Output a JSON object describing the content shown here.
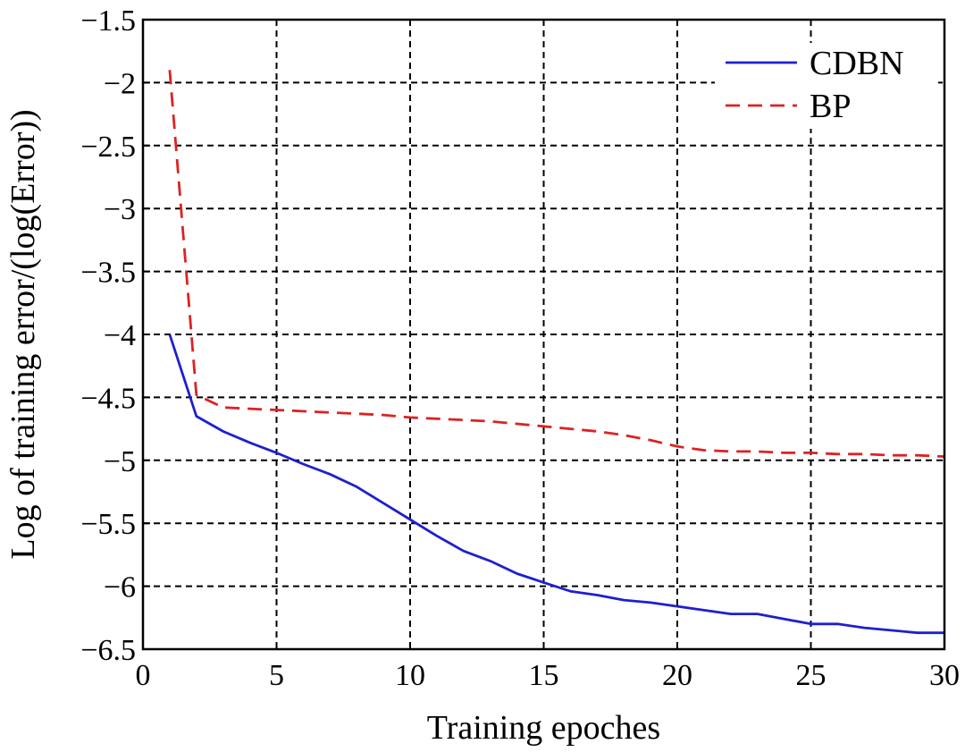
{
  "chart_data": {
    "type": "line",
    "title": "",
    "xlabel": "Training epoches",
    "ylabel": "Log of training error/(log(Error))",
    "xlim": [
      0,
      30
    ],
    "ylim": [
      -6.5,
      -1.5
    ],
    "xticks": [
      0,
      5,
      10,
      15,
      20,
      25,
      30
    ],
    "xtick_labels": [
      "0",
      "5",
      "10",
      "15",
      "20",
      "25",
      "30"
    ],
    "yticks": [
      -1.5,
      -2,
      -2.5,
      -3,
      -3.5,
      -4,
      -4.5,
      -5,
      -5.5,
      -6,
      -6.5
    ],
    "ytick_labels": [
      "−1.5",
      "−2",
      "−2.5",
      "−3",
      "−3.5",
      "−4",
      "−4.5",
      "−5",
      "−5.5",
      "−6",
      "−6.5"
    ],
    "grid": true,
    "legend_position": "top-right",
    "series": [
      {
        "name": "CDBN",
        "color": "#1f1fcf",
        "style": "solid",
        "x": [
          1,
          2,
          3,
          4,
          5,
          6,
          7,
          8,
          9,
          10,
          11,
          12,
          13,
          14,
          15,
          16,
          17,
          18,
          19,
          20,
          21,
          22,
          23,
          24,
          25,
          26,
          27,
          28,
          29,
          30
        ],
        "values": [
          -4.0,
          -4.65,
          -4.77,
          -4.86,
          -4.94,
          -5.03,
          -5.11,
          -5.21,
          -5.34,
          -5.47,
          -5.6,
          -5.72,
          -5.8,
          -5.9,
          -5.97,
          -6.04,
          -6.07,
          -6.11,
          -6.13,
          -6.16,
          -6.19,
          -6.22,
          -6.22,
          -6.26,
          -6.3,
          -6.3,
          -6.33,
          -6.35,
          -6.37,
          -6.37
        ]
      },
      {
        "name": "BP",
        "color": "#dd2222",
        "style": "dashed",
        "x": [
          1,
          2,
          3,
          4,
          5,
          6,
          7,
          8,
          9,
          10,
          11,
          12,
          13,
          14,
          15,
          16,
          17,
          18,
          19,
          20,
          21,
          22,
          23,
          24,
          25,
          26,
          27,
          28,
          29,
          30
        ],
        "values": [
          -1.9,
          -4.48,
          -4.58,
          -4.59,
          -4.6,
          -4.61,
          -4.62,
          -4.63,
          -4.64,
          -4.66,
          -4.67,
          -4.68,
          -4.69,
          -4.71,
          -4.73,
          -4.75,
          -4.77,
          -4.8,
          -4.84,
          -4.89,
          -4.92,
          -4.93,
          -4.93,
          -4.94,
          -4.94,
          -4.95,
          -4.95,
          -4.96,
          -4.96,
          -4.97
        ]
      }
    ]
  }
}
